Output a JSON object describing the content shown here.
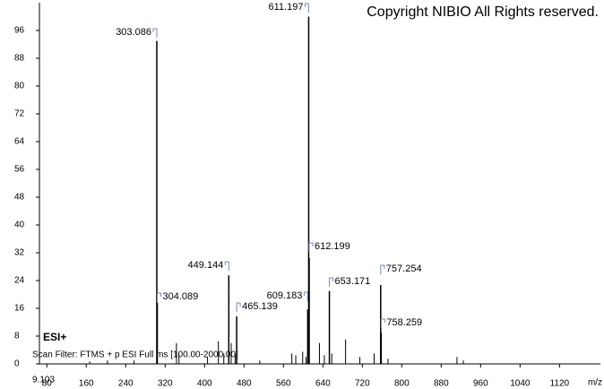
{
  "chart_data": {
    "type": "spectrum",
    "title": "Copyright NIBIO All Rights reserved.",
    "annotations": [
      "ESI+",
      "Scan Filter: FTMS + p ESI Full ms [100.00-2000.00]",
      "9.103"
    ],
    "x_label": "m/z",
    "x": [
      303.086,
      304.089,
      449.144,
      465.139,
      609.183,
      611.197,
      612.199,
      653.171,
      757.254,
      758.259
    ],
    "values": [
      93,
      17.5,
      25.5,
      13.7,
      15.7,
      100,
      30.5,
      21,
      22.7,
      9
    ],
    "other_peaks": {
      "x": [
        167,
        203,
        257,
        343,
        348,
        406,
        428,
        439,
        454,
        462,
        512,
        577,
        585,
        599,
        606,
        633,
        643,
        658,
        686,
        715,
        744,
        772,
        912,
        925
      ],
      "values": [
        0.7,
        1,
        1,
        6,
        3,
        2,
        6.5,
        3,
        6,
        3,
        1,
        3,
        2.5,
        3.5,
        2,
        6,
        2.5,
        3,
        7,
        2,
        3,
        1.5,
        2,
        1
      ]
    },
    "color": "#000000",
    "label_color": "#2233aa",
    "xlim": [
      65,
      1203
    ],
    "ylim": [
      0,
      104
    ],
    "xticks": [
      80,
      160,
      240,
      320,
      400,
      480,
      560,
      640,
      720,
      800,
      880,
      960,
      1040,
      1120
    ],
    "yticks": [
      0,
      8,
      16,
      24,
      32,
      40,
      48,
      56,
      64,
      72,
      80,
      88,
      96
    ]
  }
}
